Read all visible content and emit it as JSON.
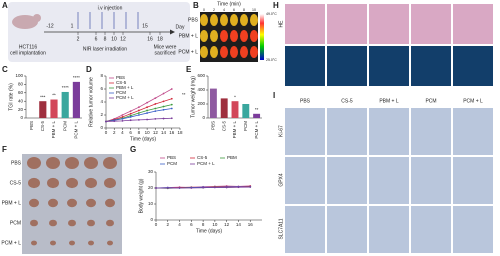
{
  "panel_labels": [
    "A",
    "B",
    "C",
    "D",
    "E",
    "F",
    "G",
    "H",
    "I"
  ],
  "timeline": {
    "injection_label": "i.v injection",
    "day_label": "Day",
    "top_ticks": [
      "-12",
      "1",
      "15"
    ],
    "bottom_ticks": [
      "2",
      "6",
      "8",
      "10",
      "12",
      "16",
      "18"
    ],
    "implantation": [
      "HCT116",
      "cell implantation"
    ],
    "irradiation": "NIR laser irradiation",
    "sacrifice": [
      "Mice were",
      "sacrificed"
    ]
  },
  "thermal": {
    "title": "Time (min)",
    "times": [
      "0",
      "2",
      "4",
      "6",
      "8",
      "10"
    ],
    "rows": [
      "PBS",
      "PBM + L",
      "PCM + L"
    ],
    "scale_max": "49.0°C",
    "scale_min": "25.0°C"
  },
  "photo": {
    "rows": [
      "PBS",
      "CS-5",
      "PBM + L",
      "PCM",
      "PCM + L"
    ]
  },
  "histology": {
    "columns": [
      "PBS",
      "CS-5",
      "PBM + L",
      "PCM",
      "PCM + L"
    ],
    "rows": [
      "HE"
    ]
  },
  "ihc": {
    "columns": [
      "PBS",
      "CS-5",
      "PBM + L",
      "PCM",
      "PCM + L"
    ],
    "rows": [
      "Ki-67",
      "GPX4",
      "SLC7A11"
    ]
  },
  "chart_data": [
    {
      "type": "bar",
      "ylabel": "TGI rate (%)",
      "categories": [
        "PBS",
        "CS-5",
        "PBM + L",
        "PCM",
        "PCM + L"
      ],
      "values": [
        0,
        40,
        44,
        62,
        86
      ],
      "colors": [
        "#8e5aa0",
        "#9e2f3e",
        "#d2475a",
        "#3aa79e",
        "#7b3c9b"
      ],
      "ylim": [
        0,
        100
      ],
      "yticks": [
        0,
        20,
        40,
        60,
        80,
        100
      ],
      "annotations": [
        {
          "index": 1,
          "text": "***"
        },
        {
          "index": 2,
          "text": "**"
        },
        {
          "index": 3,
          "text": "****"
        },
        {
          "index": 4,
          "text": "****"
        }
      ]
    },
    {
      "type": "line",
      "ylabel": "Relative tumor volume",
      "xlabel": "Time (days)",
      "x": [
        0,
        2,
        4,
        6,
        8,
        10,
        12,
        14,
        16
      ],
      "series": [
        {
          "name": "PBS",
          "color": "#c04a8a",
          "values": [
            1,
            1.4,
            2,
            2.6,
            3.2,
            3.9,
            4.6,
            5.3,
            6
          ]
        },
        {
          "name": "CS-5",
          "color": "#d2283a",
          "values": [
            1,
            1.3,
            1.7,
            2.2,
            2.7,
            3.2,
            3.7,
            4.1,
            4.5
          ]
        },
        {
          "name": "PBM + L",
          "color": "#3c9a3c",
          "values": [
            1,
            1.2,
            1.5,
            1.9,
            2.3,
            2.7,
            3,
            3.3,
            3.6
          ]
        },
        {
          "name": "PCM",
          "color": "#3a5fc8",
          "values": [
            1,
            1.2,
            1.4,
            1.7,
            2,
            2.3,
            2.6,
            2.8,
            3
          ]
        },
        {
          "name": "PCM + L",
          "color": "#7b3c9b",
          "values": [
            1,
            1.05,
            1.1,
            1.2,
            1.25,
            1.3,
            1.4,
            1.45,
            1.5
          ]
        }
      ],
      "xlim": [
        0,
        18
      ],
      "xticks": [
        0,
        2,
        4,
        6,
        8,
        10,
        12,
        14,
        16,
        18
      ],
      "ylim": [
        0,
        8
      ],
      "yticks": [
        0,
        2,
        4,
        6,
        8
      ],
      "annotations": [
        {
          "text": "**"
        }
      ]
    },
    {
      "type": "bar",
      "ylabel": "Tumor weight (mg)",
      "categories": [
        "PBS",
        "CS-5",
        "PBM + L",
        "PCM",
        "PCM + L"
      ],
      "values": [
        420,
        280,
        240,
        200,
        60
      ],
      "colors": [
        "#8e5aa0",
        "#9e2f3e",
        "#d2475a",
        "#3aa79e",
        "#7b3c9b"
      ],
      "ylim": [
        0,
        600
      ],
      "yticks": [
        0,
        200,
        400,
        600
      ],
      "annotations": [
        {
          "index": 2,
          "text": "*"
        },
        {
          "index": 4,
          "text": "**"
        }
      ]
    },
    {
      "type": "line",
      "ylabel": "Body weight (g)",
      "xlabel": "Time (days)",
      "x": [
        0,
        2,
        4,
        6,
        8,
        10,
        12,
        14,
        16
      ],
      "series": [
        {
          "name": "PBS",
          "color": "#c04a8a",
          "values": [
            20,
            20.3,
            20.5,
            20.4,
            20.8,
            21,
            21.2,
            21,
            21.3
          ]
        },
        {
          "name": "CS-5",
          "color": "#d2283a",
          "values": [
            20,
            20.1,
            20.2,
            20.5,
            20.4,
            20.6,
            20.8,
            20.7,
            21
          ]
        },
        {
          "name": "PBM",
          "color": "#3c9a3c",
          "values": [
            20,
            19.8,
            20.1,
            20.3,
            20.2,
            20.5,
            20.4,
            20.6,
            20.8
          ]
        },
        {
          "name": "PCM",
          "color": "#3a5fc8",
          "values": [
            20,
            20.2,
            20,
            20.3,
            20.5,
            20.4,
            20.6,
            20.8,
            20.7
          ]
        },
        {
          "name": "PCM + L",
          "color": "#7b3c9b",
          "values": [
            20,
            19.9,
            20.1,
            20,
            20.2,
            20.4,
            20.3,
            20.5,
            20.6
          ]
        }
      ],
      "xlim": [
        0,
        18
      ],
      "xticks": [
        0,
        2,
        4,
        6,
        8,
        10,
        12,
        14,
        16
      ],
      "ylim": [
        0,
        30
      ],
      "yticks": [
        0,
        10,
        20,
        30
      ]
    }
  ]
}
